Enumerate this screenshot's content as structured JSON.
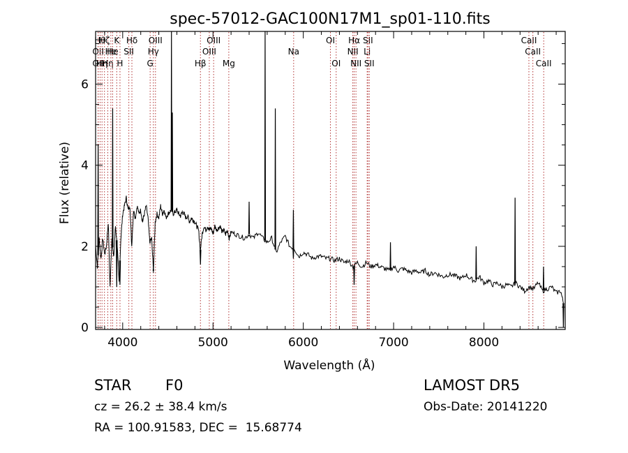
{
  "chart_data": {
    "type": "line",
    "title": "spec-57012-GAC100N17M1_sp01-110.fits",
    "xlabel": "Wavelength (Å)",
    "ylabel": "Flux (relative)",
    "xlim": [
      3700,
      8900
    ],
    "ylim": [
      -0.05,
      7.3
    ],
    "xticks": [
      4000,
      5000,
      6000,
      7000,
      8000
    ],
    "xtick_labels": [
      "4000",
      "5000",
      "6000",
      "7000",
      "8000"
    ],
    "yticks": [
      0,
      2,
      4,
      6
    ],
    "ytick_labels": [
      "0",
      "2",
      "4",
      "6"
    ],
    "grid": false,
    "spectrum": {
      "x": [
        3700,
        3720,
        3740,
        3760,
        3780,
        3800,
        3820,
        3840,
        3860,
        3880,
        3900,
        3920,
        3940,
        3960,
        3980,
        4000,
        4020,
        4040,
        4060,
        4080,
        4100,
        4120,
        4140,
        4160,
        4180,
        4200,
        4220,
        4240,
        4260,
        4280,
        4300,
        4320,
        4340,
        4360,
        4380,
        4400,
        4420,
        4440,
        4460,
        4480,
        4500,
        4520,
        4540,
        4560,
        4580,
        4600,
        4620,
        4640,
        4660,
        4680,
        4700,
        4720,
        4740,
        4760,
        4780,
        4800,
        4820,
        4840,
        4860,
        4880,
        4900,
        4920,
        4940,
        4960,
        4980,
        5000,
        5020,
        5040,
        5060,
        5080,
        5100,
        5120,
        5140,
        5160,
        5180,
        5200,
        5250,
        5300,
        5350,
        5400,
        5450,
        5500,
        5550,
        5600,
        5650,
        5700,
        5750,
        5800,
        5850,
        5900,
        5950,
        6000,
        6050,
        6100,
        6150,
        6200,
        6250,
        6300,
        6350,
        6400,
        6450,
        6500,
        6550,
        6600,
        6650,
        6700,
        6750,
        6800,
        6850,
        6900,
        6950,
        7000,
        7050,
        7100,
        7150,
        7200,
        7250,
        7300,
        7350,
        7400,
        7450,
        7500,
        7550,
        7600,
        7650,
        7700,
        7750,
        7800,
        7850,
        7900,
        7950,
        8000,
        8050,
        8100,
        8150,
        8200,
        8250,
        8300,
        8350,
        8400,
        8450,
        8500,
        8550,
        8600,
        8650,
        8700,
        8750,
        8800,
        8850,
        8880
      ],
      "y": [
        2.0,
        1.5,
        2.2,
        1.7,
        2.2,
        1.8,
        2.0,
        2.6,
        1.0,
        2.2,
        1.7,
        2.5,
        2.0,
        1.1,
        2.2,
        2.8,
        3.0,
        3.2,
        2.9,
        3.0,
        2.0,
        2.9,
        2.7,
        3.0,
        2.8,
        2.9,
        2.6,
        2.8,
        3.0,
        2.7,
        2.1,
        2.2,
        1.4,
        2.6,
        2.8,
        2.7,
        3.0,
        2.8,
        2.9,
        2.7,
        2.8,
        2.85,
        2.9,
        2.8,
        2.85,
        2.9,
        2.8,
        2.75,
        2.85,
        2.8,
        2.7,
        2.75,
        2.6,
        2.7,
        2.65,
        2.6,
        2.5,
        2.4,
        1.9,
        2.3,
        2.5,
        2.4,
        2.5,
        2.4,
        2.45,
        2.3,
        2.5,
        2.4,
        2.45,
        2.5,
        2.35,
        2.4,
        2.3,
        2.4,
        2.2,
        2.35,
        2.3,
        2.25,
        2.2,
        2.3,
        2.2,
        2.35,
        2.2,
        2.1,
        2.2,
        1.85,
        2.1,
        2.25,
        2.0,
        1.95,
        1.75,
        1.85,
        1.8,
        1.7,
        1.75,
        1.75,
        1.7,
        1.7,
        1.65,
        1.7,
        1.6,
        1.65,
        1.5,
        1.6,
        1.5,
        1.6,
        1.5,
        1.55,
        1.5,
        1.45,
        1.4,
        1.5,
        1.4,
        1.45,
        1.4,
        1.35,
        1.4,
        1.35,
        1.4,
        1.3,
        1.35,
        1.3,
        1.25,
        1.3,
        1.3,
        1.25,
        1.2,
        1.3,
        1.2,
        1.15,
        1.25,
        1.1,
        1.15,
        1.05,
        1.1,
        1.0,
        1.05,
        1.0,
        1.1,
        1.0,
        0.9,
        1.0,
        0.95,
        1.1,
        0.9,
        0.95,
        1.0,
        0.85,
        0.9,
        0.6
      ]
    },
    "spikes": [
      {
        "x": 3728,
        "top": 4.5
      },
      {
        "x": 3889,
        "top": 5.4
      },
      {
        "x": 4540,
        "top": 7.3
      },
      {
        "x": 4550,
        "top": 5.3
      },
      {
        "x": 5400,
        "top": 3.1
      },
      {
        "x": 5577,
        "top": 7.3
      },
      {
        "x": 5690,
        "top": 5.4
      },
      {
        "x": 5890,
        "top": 2.9
      },
      {
        "x": 6965,
        "top": 2.1
      },
      {
        "x": 7914,
        "top": 2.0
      },
      {
        "x": 8345,
        "top": 3.2
      },
      {
        "x": 8660,
        "top": 1.5
      }
    ],
    "dips": [
      {
        "x": 3934,
        "bottom": 1.0
      },
      {
        "x": 3970,
        "bottom": 1.05
      },
      {
        "x": 4340,
        "bottom": 1.45
      },
      {
        "x": 4861,
        "bottom": 1.55
      },
      {
        "x": 5890,
        "bottom": 1.7
      },
      {
        "x": 6563,
        "bottom": 1.05
      },
      {
        "x": 8880,
        "bottom": 0.0
      }
    ],
    "line_markers": [
      {
        "x": 3728,
        "label": "OII",
        "row": 2
      },
      {
        "x": 3728,
        "label": "OII",
        "row": 3
      },
      {
        "x": 3750,
        "label": "Hθ",
        "row": 1
      },
      {
        "x": 3771,
        "label": "Hη",
        "row": 3
      },
      {
        "x": 3798,
        "label": "Hζ",
        "row": 1
      },
      {
        "x": 3835,
        "label": "Hη",
        "row": 3
      },
      {
        "x": 3869,
        "label": "He",
        "row": 2
      },
      {
        "x": 3889,
        "label": "He",
        "row": 2
      },
      {
        "x": 3934,
        "label": "K",
        "row": 1
      },
      {
        "x": 3970,
        "label": "H",
        "row": 3
      },
      {
        "x": 4068,
        "label": "SII",
        "row": 2
      },
      {
        "x": 4102,
        "label": "Hδ",
        "row": 1
      },
      {
        "x": 4304,
        "label": "G",
        "row": 3
      },
      {
        "x": 4340,
        "label": "Hγ",
        "row": 2
      },
      {
        "x": 4363,
        "label": "OIII",
        "row": 1
      },
      {
        "x": 4861,
        "label": "Hβ",
        "row": 3
      },
      {
        "x": 4959,
        "label": "OIII",
        "row": 2
      },
      {
        "x": 5007,
        "label": "OIII",
        "row": 1
      },
      {
        "x": 5175,
        "label": "Mg",
        "row": 3
      },
      {
        "x": 5893,
        "label": "Na",
        "row": 2
      },
      {
        "x": 6300,
        "label": "OI",
        "row": 1
      },
      {
        "x": 6364,
        "label": "OI",
        "row": 3
      },
      {
        "x": 6548,
        "label": "NII",
        "row": 2
      },
      {
        "x": 6563,
        "label": "Hα",
        "row": 1
      },
      {
        "x": 6583,
        "label": "NII",
        "row": 3
      },
      {
        "x": 6707,
        "label": "Li",
        "row": 2
      },
      {
        "x": 6716,
        "label": "SII",
        "row": 1
      },
      {
        "x": 6731,
        "label": "SII",
        "row": 3
      },
      {
        "x": 8498,
        "label": "CaII",
        "row": 1
      },
      {
        "x": 8542,
        "label": "CaII",
        "row": 2
      },
      {
        "x": 8662,
        "label": "CaII",
        "row": 3
      }
    ]
  },
  "info": {
    "object_type": "STAR",
    "object_class": "F0",
    "survey": "LAMOST DR5",
    "cz": "cz = 26.2 ± 38.4 km/s",
    "obs_date": "Obs-Date: 20141220",
    "radec": "RA = 100.91583, DEC =  15.68774"
  }
}
